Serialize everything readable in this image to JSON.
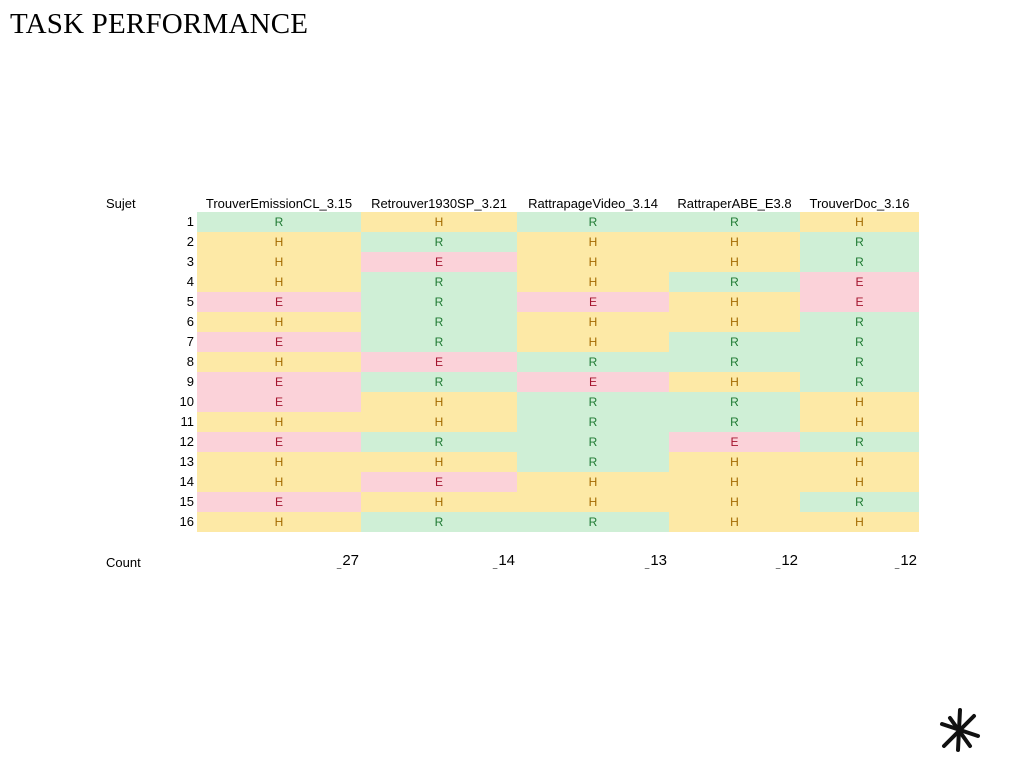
{
  "title": "TASK PERFORMANCE",
  "sujet_label": "Sujet",
  "count_label": "Count",
  "columns": [
    "TrouverEmissionCL_3.15",
    "Retrouver1930SP_3.21",
    "RattrapageVideo_3.14",
    "RattraperABE_E3.8",
    "TrouverDoc_3.16"
  ],
  "rows": [
    {
      "id": "1",
      "values": [
        "R",
        "H",
        "R",
        "R",
        "H"
      ]
    },
    {
      "id": "2",
      "values": [
        "H",
        "R",
        "H",
        "H",
        "R"
      ]
    },
    {
      "id": "3",
      "values": [
        "H",
        "E",
        "H",
        "H",
        "R"
      ]
    },
    {
      "id": "4",
      "values": [
        "H",
        "R",
        "H",
        "R",
        "E"
      ]
    },
    {
      "id": "5",
      "values": [
        "E",
        "R",
        "E",
        "H",
        "E"
      ]
    },
    {
      "id": "6",
      "values": [
        "H",
        "R",
        "H",
        "H",
        "R"
      ]
    },
    {
      "id": "7",
      "values": [
        "E",
        "R",
        "H",
        "R",
        "R"
      ]
    },
    {
      "id": "8",
      "values": [
        "H",
        "E",
        "R",
        "R",
        "R"
      ]
    },
    {
      "id": "9",
      "values": [
        "E",
        "R",
        "E",
        "H",
        "R"
      ]
    },
    {
      "id": "10",
      "values": [
        "E",
        "H",
        "R",
        "R",
        "H"
      ]
    },
    {
      "id": "11",
      "values": [
        "H",
        "H",
        "R",
        "R",
        "H"
      ]
    },
    {
      "id": "12",
      "values": [
        "E",
        "R",
        "R",
        "E",
        "R"
      ]
    },
    {
      "id": "13",
      "values": [
        "H",
        "H",
        "R",
        "H",
        "H"
      ]
    },
    {
      "id": "14",
      "values": [
        "H",
        "E",
        "H",
        "H",
        "H"
      ]
    },
    {
      "id": "15",
      "values": [
        "E",
        "H",
        "H",
        "H",
        "R"
      ]
    },
    {
      "id": "16",
      "values": [
        "H",
        "R",
        "R",
        "H",
        "H"
      ]
    }
  ],
  "counts": [
    "27",
    "14",
    "13",
    "12",
    "12"
  ],
  "colors": {
    "R_bg": "#cfefd6",
    "R_text": "#1f7a33",
    "H_bg": "#fde9a6",
    "H_text": "#a36a00",
    "E_bg": "#fbd2d9",
    "E_text": "#a4142e"
  },
  "logo_icon": "asterisk-logo-icon"
}
